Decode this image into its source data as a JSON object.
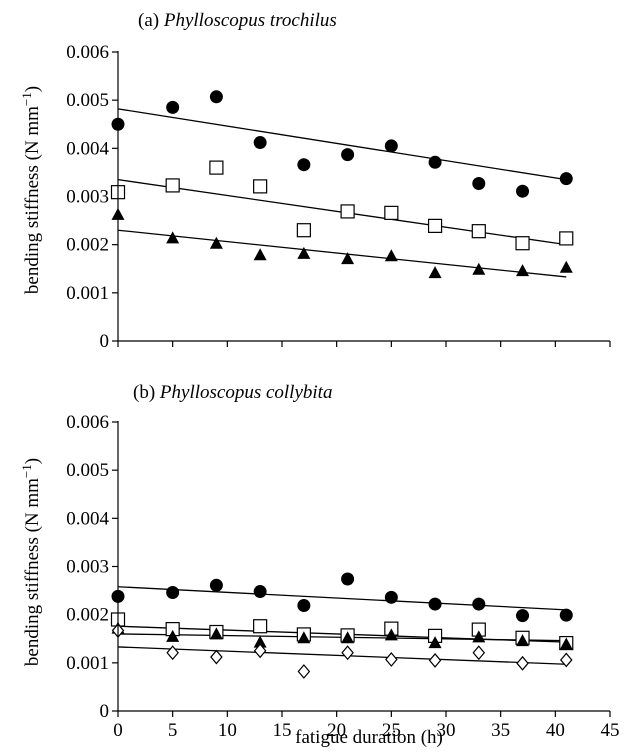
{
  "chart_data": [
    {
      "type": "scatter",
      "title_label": "(a)",
      "title_species": "Phylloscopus trochilus",
      "ylabel_main": "bending stiffness (N mm",
      "ylabel_exp": "−1",
      "ylabel_close": ")",
      "xlabel": "",
      "ylim": [
        0,
        0.006
      ],
      "yticks": [
        0,
        0.001,
        0.002,
        0.003,
        0.004,
        0.005,
        0.006
      ],
      "ytick_labels": [
        "0",
        "0.001",
        "0.002",
        "0.003",
        "0.004",
        "0.005",
        "0.006"
      ],
      "xlim": [
        0,
        45
      ],
      "xticks": [
        0,
        5,
        10,
        15,
        20,
        25,
        30,
        35,
        40,
        45
      ],
      "show_xtick_labels": false,
      "grid": false,
      "series": [
        {
          "marker": "filled-circle",
          "x": [
            0,
            5,
            9,
            13,
            17,
            21,
            25,
            29,
            33,
            37,
            41
          ],
          "y": [
            0.0045,
            0.00485,
            0.00507,
            0.00412,
            0.00366,
            0.00387,
            0.00405,
            0.00371,
            0.00327,
            0.00311,
            0.00337
          ],
          "trend": [
            [
              0,
              0.00482
            ],
            [
              41,
              0.00335
            ]
          ]
        },
        {
          "marker": "open-square",
          "x": [
            0,
            5,
            9,
            13,
            17,
            21,
            25,
            29,
            33,
            37,
            41
          ],
          "y": [
            0.00309,
            0.00323,
            0.0036,
            0.00321,
            0.0023,
            0.00269,
            0.00266,
            0.00239,
            0.00228,
            0.00203,
            0.00213
          ],
          "trend": [
            [
              0,
              0.00335
            ],
            [
              41,
              0.002
            ]
          ]
        },
        {
          "marker": "filled-triangle",
          "x": [
            0,
            5,
            9,
            13,
            17,
            21,
            25,
            29,
            33,
            37,
            41
          ],
          "y": [
            0.00263,
            0.00214,
            0.00203,
            0.00179,
            0.00182,
            0.00171,
            0.00177,
            0.00142,
            0.00149,
            0.00146,
            0.00153
          ],
          "trend": [
            [
              0,
              0.0023
            ],
            [
              41,
              0.00133
            ]
          ]
        }
      ]
    },
    {
      "type": "scatter",
      "title_label": "(b)",
      "title_species": "Phylloscopus collybita",
      "ylabel_main": "bending stiffness (N mm",
      "ylabel_exp": "−1",
      "ylabel_close": ")",
      "xlabel": "fatigue duration (h)",
      "ylim": [
        0,
        0.006
      ],
      "yticks": [
        0,
        0.001,
        0.002,
        0.003,
        0.004,
        0.005,
        0.006
      ],
      "ytick_labels": [
        "0",
        "0.001",
        "0.002",
        "0.003",
        "0.004",
        "0.005",
        "0.006"
      ],
      "xlim": [
        0,
        45
      ],
      "xticks": [
        0,
        5,
        10,
        15,
        20,
        25,
        30,
        35,
        40,
        45
      ],
      "xtick_labels": [
        "0",
        "5",
        "10",
        "15",
        "20",
        "25",
        "30",
        "35",
        "40",
        "45"
      ],
      "show_xtick_labels": true,
      "grid": false,
      "series": [
        {
          "marker": "filled-circle",
          "x": [
            0,
            5,
            9,
            13,
            17,
            21,
            25,
            29,
            33,
            37,
            41
          ],
          "y": [
            0.00238,
            0.00246,
            0.00261,
            0.00248,
            0.00219,
            0.00274,
            0.00236,
            0.00222,
            0.00222,
            0.00198,
            0.00199
          ],
          "trend": [
            [
              0,
              0.00258
            ],
            [
              41,
              0.0021
            ]
          ]
        },
        {
          "marker": "open-square",
          "x": [
            0,
            5,
            9,
            13,
            17,
            21,
            25,
            29,
            33,
            37,
            41
          ],
          "y": [
            0.0019,
            0.0017,
            0.00164,
            0.00176,
            0.00159,
            0.00157,
            0.00171,
            0.00156,
            0.00169,
            0.00152,
            0.00141
          ],
          "trend": [
            [
              0,
              0.00176
            ],
            [
              41,
              0.00143
            ]
          ]
        },
        {
          "marker": "filled-triangle",
          "x": [
            0,
            5,
            9,
            13,
            17,
            21,
            25,
            29,
            33,
            37,
            41
          ],
          "y": [
            0.00172,
            0.00155,
            0.0016,
            0.00143,
            0.00152,
            0.00152,
            0.00158,
            0.00142,
            0.00154,
            0.00146,
            0.00139
          ],
          "trend": [
            [
              0,
              0.0016
            ],
            [
              41,
              0.00146
            ]
          ]
        },
        {
          "marker": "open-diamond",
          "x": [
            0,
            5,
            9,
            13,
            17,
            21,
            25,
            29,
            33,
            37,
            41
          ],
          "y": [
            0.00167,
            0.00121,
            0.00112,
            0.00125,
            0.00082,
            0.00121,
            0.00107,
            0.00105,
            0.00121,
            0.00099,
            0.00106
          ],
          "trend": [
            [
              0,
              0.00133
            ],
            [
              41,
              0.00097
            ]
          ]
        }
      ]
    }
  ]
}
